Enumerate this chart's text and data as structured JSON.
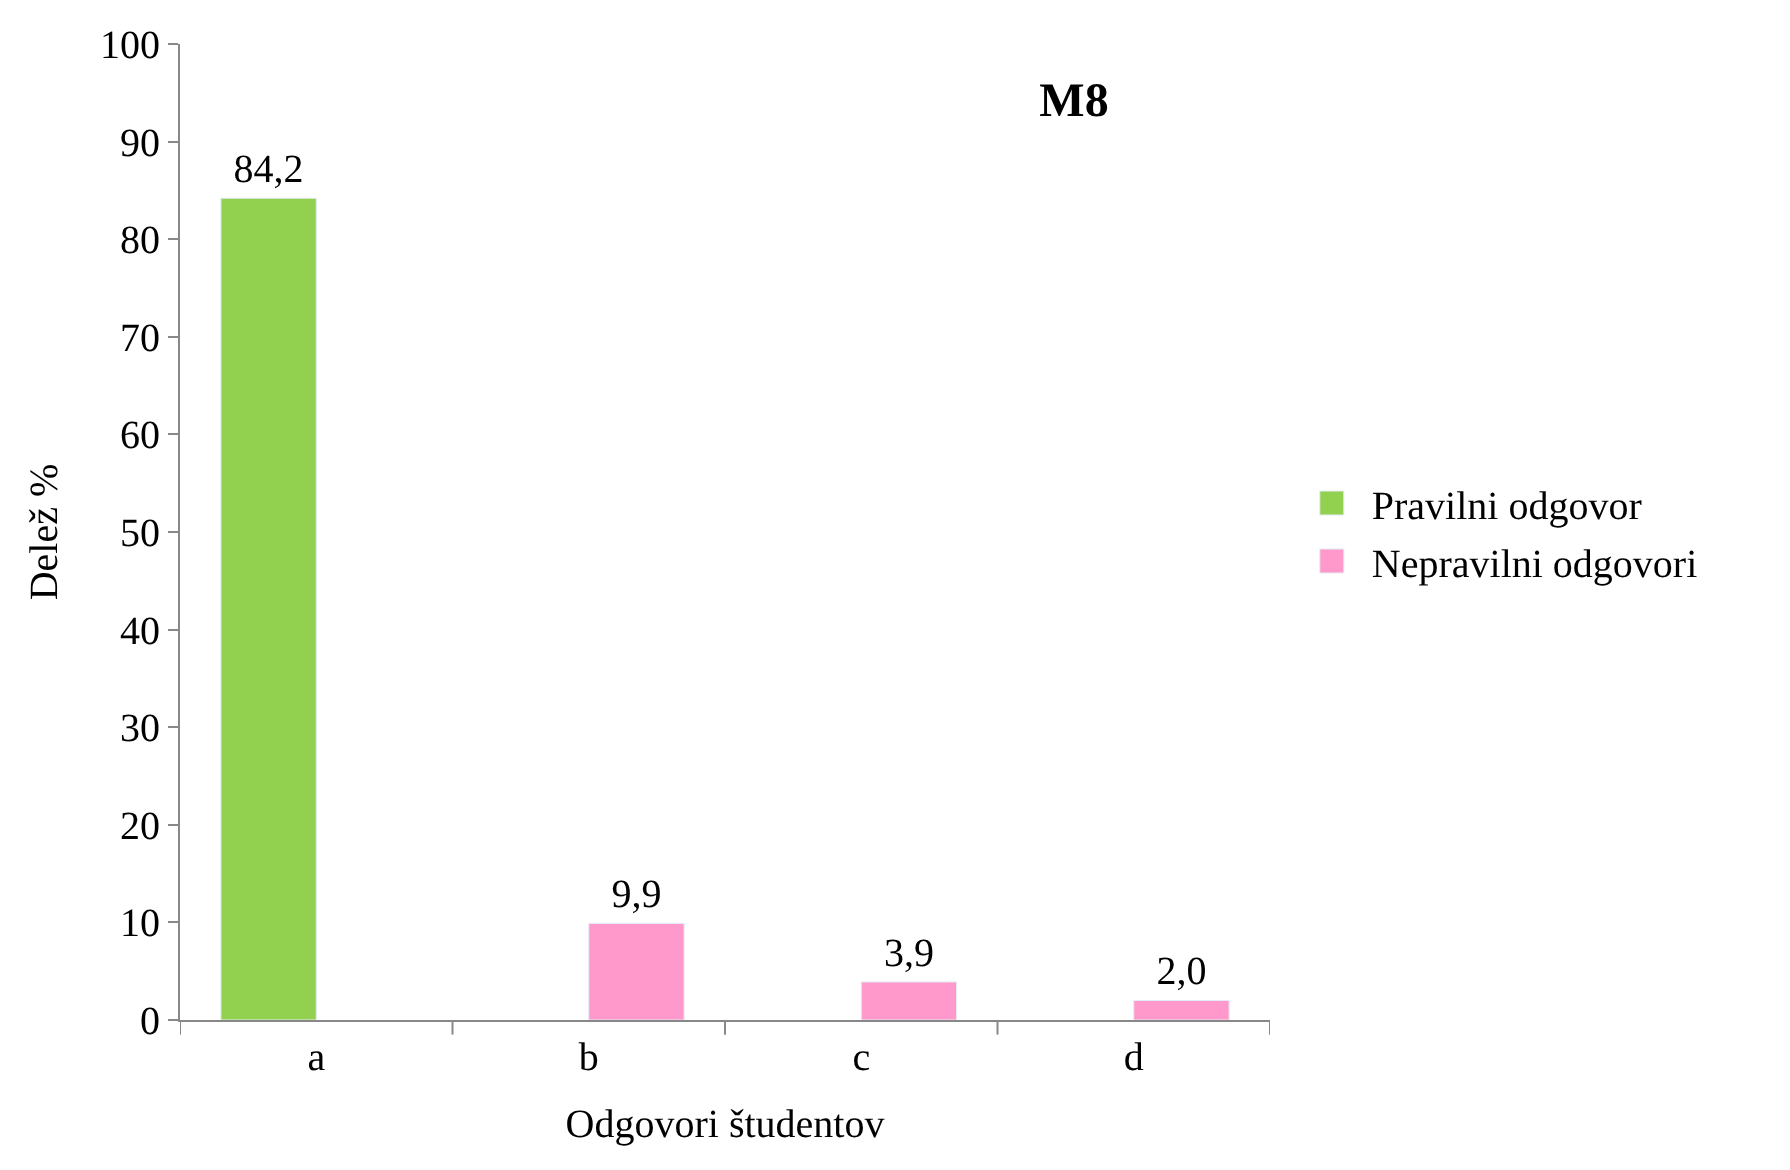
{
  "chart_data": {
    "type": "bar",
    "title": "M8",
    "xlabel": "Odgovori študentov",
    "ylabel": "Delež %",
    "categories": [
      "a",
      "b",
      "c",
      "d"
    ],
    "series": [
      {
        "name": "Pravilni odgovor",
        "color": "#92d050",
        "values": [
          84.2,
          null,
          null,
          null
        ],
        "value_labels": [
          "84,2",
          null,
          null,
          null
        ]
      },
      {
        "name": "Nepravilni odgovori",
        "color": "#ff99cc",
        "values": [
          null,
          9.9,
          3.9,
          2.0
        ],
        "value_labels": [
          null,
          "9,9",
          "3,9",
          "2,0"
        ]
      }
    ],
    "ylim": [
      0,
      100
    ],
    "yticks": [
      0,
      10,
      20,
      30,
      40,
      50,
      60,
      70,
      80,
      90,
      100
    ],
    "legend": "right"
  }
}
